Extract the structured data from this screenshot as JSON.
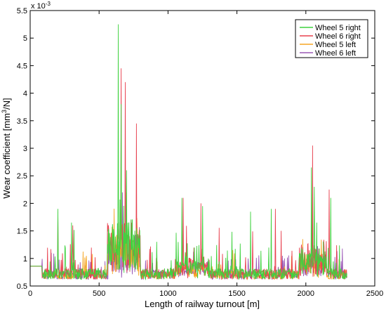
{
  "chart_data": {
    "type": "line",
    "xlabel": "Length of railway turnout [m]",
    "ylabel_main": "Wear coefficient  [mm",
    "ylabel_sup": "3",
    "ylabel_end": "/N]",
    "exponent": "x 10",
    "exponent_sup": "-3",
    "xlim": [
      0,
      2500
    ],
    "ylim": [
      0.5,
      5.5
    ],
    "xticks": [
      0,
      500,
      1000,
      1500,
      2000,
      2500
    ],
    "xtick_labels": [
      "0",
      "500",
      "1000",
      "1500",
      "2000",
      "2500"
    ],
    "yticks": [
      0.5,
      1,
      1.5,
      2,
      2.5,
      3,
      3.5,
      4,
      4.5,
      5,
      5.5
    ],
    "ytick_labels": [
      "0.5",
      "1",
      "1.5",
      "2",
      "2.5",
      "3",
      "3.5",
      "4",
      "4.5",
      "5",
      "5.5"
    ],
    "grid": false,
    "legend_position": "top-right",
    "series": [
      {
        "name": "Wheel 5 right",
        "color": "#3fd23f",
        "baseline": 0.72,
        "jitter": 0.1,
        "scale": 1.0,
        "peaks": [
          [
            80,
            0.86
          ],
          [
            200,
            1.9
          ],
          [
            300,
            1.65
          ],
          [
            640,
            5.25
          ],
          [
            660,
            3.8
          ],
          [
            700,
            2.6
          ],
          [
            1100,
            2.1
          ],
          [
            1250,
            1.95
          ],
          [
            1600,
            1.85
          ],
          [
            1750,
            1.9
          ],
          [
            2040,
            2.65
          ],
          [
            2060,
            2.3
          ],
          [
            2180,
            2.1
          ]
        ]
      },
      {
        "name": "Wheel 6 right",
        "color": "#e8414f",
        "baseline": 0.72,
        "jitter": 0.1,
        "scale": 1.0,
        "peaks": [
          [
            80,
            0.86
          ],
          [
            200,
            1.85
          ],
          [
            310,
            1.6
          ],
          [
            660,
            4.45
          ],
          [
            690,
            4.2
          ],
          [
            770,
            3.45
          ],
          [
            1110,
            2.1
          ],
          [
            1240,
            2.0
          ],
          [
            1780,
            1.9
          ],
          [
            2050,
            3.05
          ],
          [
            2170,
            2.25
          ]
        ]
      },
      {
        "name": "Wheel 5 left",
        "color": "#f5a623",
        "baseline": 0.7,
        "jitter": 0.08,
        "scale": 0.8,
        "peaks": [
          [
            80,
            0.86
          ],
          [
            660,
            2.6
          ],
          [
            700,
            2.2
          ],
          [
            1100,
            1.5
          ],
          [
            2040,
            1.6
          ]
        ]
      },
      {
        "name": "Wheel 6 left",
        "color": "#9b59b6",
        "baseline": 0.7,
        "jitter": 0.08,
        "scale": 0.75,
        "peaks": [
          [
            80,
            0.86
          ],
          [
            670,
            2.2
          ],
          [
            2050,
            1.5
          ]
        ]
      }
    ]
  }
}
